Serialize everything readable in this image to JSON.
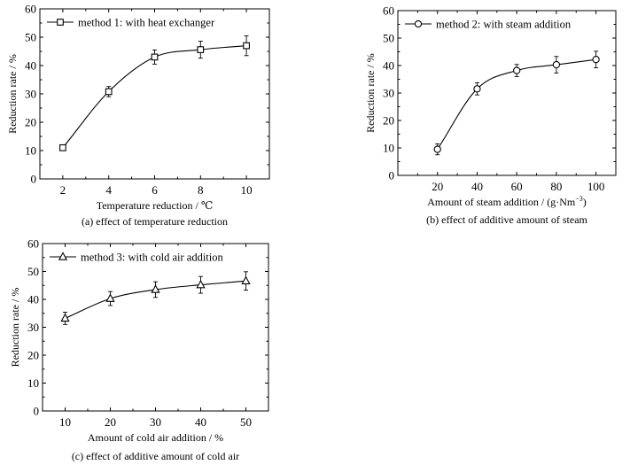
{
  "chart_data": [
    {
      "type": "scatter",
      "marker": "square",
      "xlabel": "Temperature reduction / ℃",
      "ylabel": "Reduction rate / %",
      "caption": "(a) effect of temperature reduction",
      "legend": "method 1: with heat exchanger",
      "legend_position": "top-left",
      "xlim": [
        1,
        11
      ],
      "ylim": [
        0,
        60
      ],
      "xticks": [
        "2",
        "4",
        "6",
        "8",
        "10"
      ],
      "yticks": [
        "0",
        "10",
        "20",
        "30",
        "40",
        "50",
        "60"
      ],
      "grid": false,
      "x": [
        2,
        4,
        6,
        8,
        10
      ],
      "y": [
        11,
        30.8,
        43,
        45.6,
        47
      ],
      "yerr": [
        0.8,
        1.8,
        2.5,
        3,
        3.5
      ]
    },
    {
      "type": "scatter",
      "marker": "circle",
      "xlabel": "Amount of steam addition / (g·Nm",
      "xlabel_sup": "−3",
      "xlabel_tail": ")",
      "ylabel": "Reduction rate / %",
      "caption": "(b) effect of additive amount of steam",
      "legend": "method 2: with steam addition",
      "legend_position": "top-left",
      "xlim": [
        0,
        110
      ],
      "ylim": [
        0,
        60
      ],
      "xticks": [
        "20",
        "40",
        "60",
        "80",
        "100"
      ],
      "yticks": [
        "0",
        "10",
        "20",
        "30",
        "40",
        "50",
        "60"
      ],
      "grid": false,
      "x": [
        20,
        40,
        60,
        80,
        100
      ],
      "y": [
        9.5,
        31.5,
        38.2,
        40.3,
        42.2
      ],
      "yerr": [
        2,
        2.2,
        2.2,
        3,
        3
      ]
    },
    {
      "type": "scatter",
      "marker": "triangle",
      "xlabel": "Amount of cold air addition / %",
      "ylabel": "Reduction rate / %",
      "caption": "(c) effect of additive amount of cold air",
      "legend": "method 3: with cold air addition",
      "legend_position": "top-left",
      "xlim": [
        5,
        55
      ],
      "ylim": [
        0,
        60
      ],
      "xticks": [
        "10",
        "20",
        "30",
        "40",
        "50"
      ],
      "yticks": [
        "0",
        "10",
        "20",
        "30",
        "40",
        "50",
        "60"
      ],
      "grid": false,
      "x": [
        10,
        20,
        30,
        40,
        50
      ],
      "y": [
        33.2,
        40.3,
        43.5,
        45.2,
        46.6
      ],
      "yerr": [
        2.2,
        2.5,
        2.8,
        3,
        3.3
      ]
    }
  ]
}
